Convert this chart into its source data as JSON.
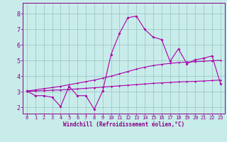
{
  "xlabel": "Windchill (Refroidissement éolien,°C)",
  "bg_color": "#c8ecea",
  "grid_color": "#a0c8c8",
  "line_color": "#aa00aa",
  "spine_color": "#880088",
  "tick_color": "#880088",
  "x_values": [
    0,
    1,
    2,
    3,
    4,
    5,
    6,
    7,
    8,
    9,
    10,
    11,
    12,
    13,
    14,
    15,
    16,
    17,
    18,
    19,
    20,
    21,
    22,
    23
  ],
  "y_main": [
    3.05,
    2.75,
    2.75,
    2.65,
    2.05,
    3.35,
    2.75,
    2.75,
    1.88,
    3.05,
    5.4,
    6.75,
    7.75,
    7.85,
    7.0,
    6.5,
    6.35,
    4.95,
    5.75,
    4.8,
    5.05,
    5.15,
    5.3,
    3.5
  ],
  "y_upper": [
    3.05,
    3.12,
    3.2,
    3.27,
    3.35,
    3.45,
    3.55,
    3.65,
    3.75,
    3.87,
    4.0,
    4.15,
    4.3,
    4.45,
    4.58,
    4.68,
    4.76,
    4.82,
    4.87,
    4.9,
    4.93,
    4.96,
    4.99,
    5.02
  ],
  "y_lower": [
    3.02,
    3.05,
    3.07,
    3.1,
    3.12,
    3.15,
    3.18,
    3.22,
    3.26,
    3.3,
    3.34,
    3.38,
    3.42,
    3.46,
    3.5,
    3.54,
    3.57,
    3.6,
    3.63,
    3.65,
    3.67,
    3.69,
    3.72,
    3.75
  ],
  "ylim": [
    1.6,
    8.7
  ],
  "yticks": [
    2,
    3,
    4,
    5,
    6,
    7,
    8
  ],
  "xlim": [
    -0.5,
    23.5
  ],
  "xticks": [
    0,
    1,
    2,
    3,
    4,
    5,
    6,
    7,
    8,
    9,
    10,
    11,
    12,
    13,
    14,
    15,
    16,
    17,
    18,
    19,
    20,
    21,
    22,
    23
  ]
}
